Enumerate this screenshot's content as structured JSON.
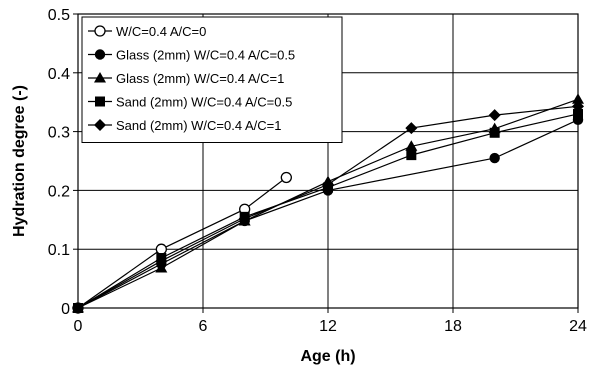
{
  "chart_data": {
    "type": "line",
    "xlabel": "Age (h)",
    "ylabel": "Hydration degree (-)",
    "xlim": [
      0,
      24
    ],
    "ylim": [
      0,
      0.5
    ],
    "xticks": [
      "0",
      "6",
      "12",
      "18",
      "24"
    ],
    "yticks": [
      "0",
      "0.1",
      "0.2",
      "0.3",
      "0.4",
      "0.5"
    ],
    "grid": true,
    "legend_position": "top-left",
    "series": [
      {
        "name": "W/C=0.4 A/C=0",
        "marker": "open-circle",
        "points": [
          [
            0,
            0
          ],
          [
            4,
            0.1
          ],
          [
            8,
            0.168
          ],
          [
            10,
            0.222
          ]
        ]
      },
      {
        "name": "Glass (2mm) W/C=0.4 A/C=0.5",
        "marker": "filled-circle",
        "points": [
          [
            0,
            0
          ],
          [
            4,
            0.075
          ],
          [
            8,
            0.148
          ],
          [
            12,
            0.2
          ],
          [
            20,
            0.255
          ],
          [
            24,
            0.32
          ]
        ]
      },
      {
        "name": "Glass (2mm) W/C=0.4 A/C=1",
        "marker": "triangle",
        "points": [
          [
            0,
            0
          ],
          [
            4,
            0.068
          ],
          [
            8,
            0.148
          ],
          [
            12,
            0.215
          ],
          [
            16,
            0.275
          ],
          [
            20,
            0.305
          ],
          [
            24,
            0.355
          ]
        ]
      },
      {
        "name": "Sand (2mm) W/C=0.4 A/C=0.5",
        "marker": "square",
        "points": [
          [
            0,
            0
          ],
          [
            4,
            0.085
          ],
          [
            8,
            0.155
          ],
          [
            12,
            0.205
          ],
          [
            16,
            0.26
          ],
          [
            20,
            0.298
          ],
          [
            24,
            0.33
          ]
        ]
      },
      {
        "name": "Sand (2mm) W/C=0.4 A/C=1",
        "marker": "diamond",
        "points": [
          [
            0,
            0
          ],
          [
            4,
            0.08
          ],
          [
            8,
            0.152
          ],
          [
            12,
            0.21
          ],
          [
            16,
            0.306
          ],
          [
            20,
            0.328
          ],
          [
            24,
            0.343
          ]
        ]
      }
    ]
  }
}
